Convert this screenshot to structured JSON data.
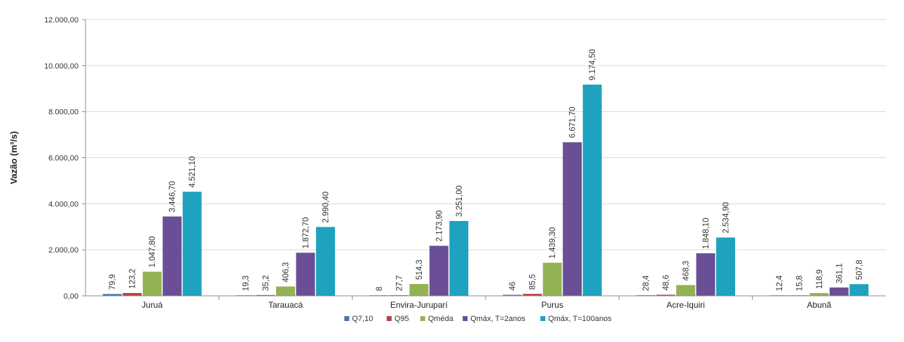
{
  "chart_data": {
    "type": "bar",
    "title": "",
    "xlabel": "",
    "ylabel": "Vazão (m³/s)",
    "ylim": [
      0,
      12000
    ],
    "yticks": [
      "0,00",
      "2.000,00",
      "4.000,00",
      "6.000,00",
      "8.000,00",
      "10.000,00",
      "12.000,00"
    ],
    "grid": true,
    "legend_position": "bottom",
    "categories": [
      "Juruá",
      "Tarauacá",
      "Envira-Juruparí",
      "Purus",
      "Acre-Iquiri",
      "Abunã"
    ],
    "series": [
      {
        "name": "Q7,10",
        "color": "#4a72b0",
        "values": [
          79.9,
          19.3,
          8,
          46,
          28.4,
          12.4
        ],
        "labels": [
          "79,9",
          "19,3",
          "8",
          "46",
          "28,4",
          "12,4"
        ]
      },
      {
        "name": "Q95",
        "color": "#b7413e",
        "values": [
          123.2,
          35.2,
          27.7,
          85.5,
          48.6,
          15.8
        ],
        "labels": [
          "123,2",
          "35,2",
          "27,7",
          "85,5",
          "48,6",
          "15,8"
        ]
      },
      {
        "name": "Qméda",
        "color": "#93b353",
        "values": [
          1047.8,
          406.3,
          514.3,
          1439.3,
          468.3,
          118.9
        ],
        "labels": [
          "1.047,80",
          "406,3",
          "514,3",
          "1.439,30",
          "468,3",
          "118,9"
        ]
      },
      {
        "name": "Qmáx, T=2anos",
        "color": "#6a4f96",
        "values": [
          3446.7,
          1872.7,
          2173.9,
          6671.7,
          1848.1,
          361.1
        ],
        "labels": [
          "3.446,70",
          "1.872,70",
          "2.173,90",
          "6.671,70",
          "1.848,10",
          "361,1"
        ]
      },
      {
        "name": "Qmáx, T=100anos",
        "color": "#1ea2bf",
        "values": [
          4521.1,
          2990.4,
          3251.0,
          9174.5,
          2534.9,
          507.8
        ],
        "labels": [
          "4.521,10",
          "2.990,40",
          "3.251,00",
          "9.174,50",
          "2.534,90",
          "507,8"
        ]
      }
    ]
  }
}
